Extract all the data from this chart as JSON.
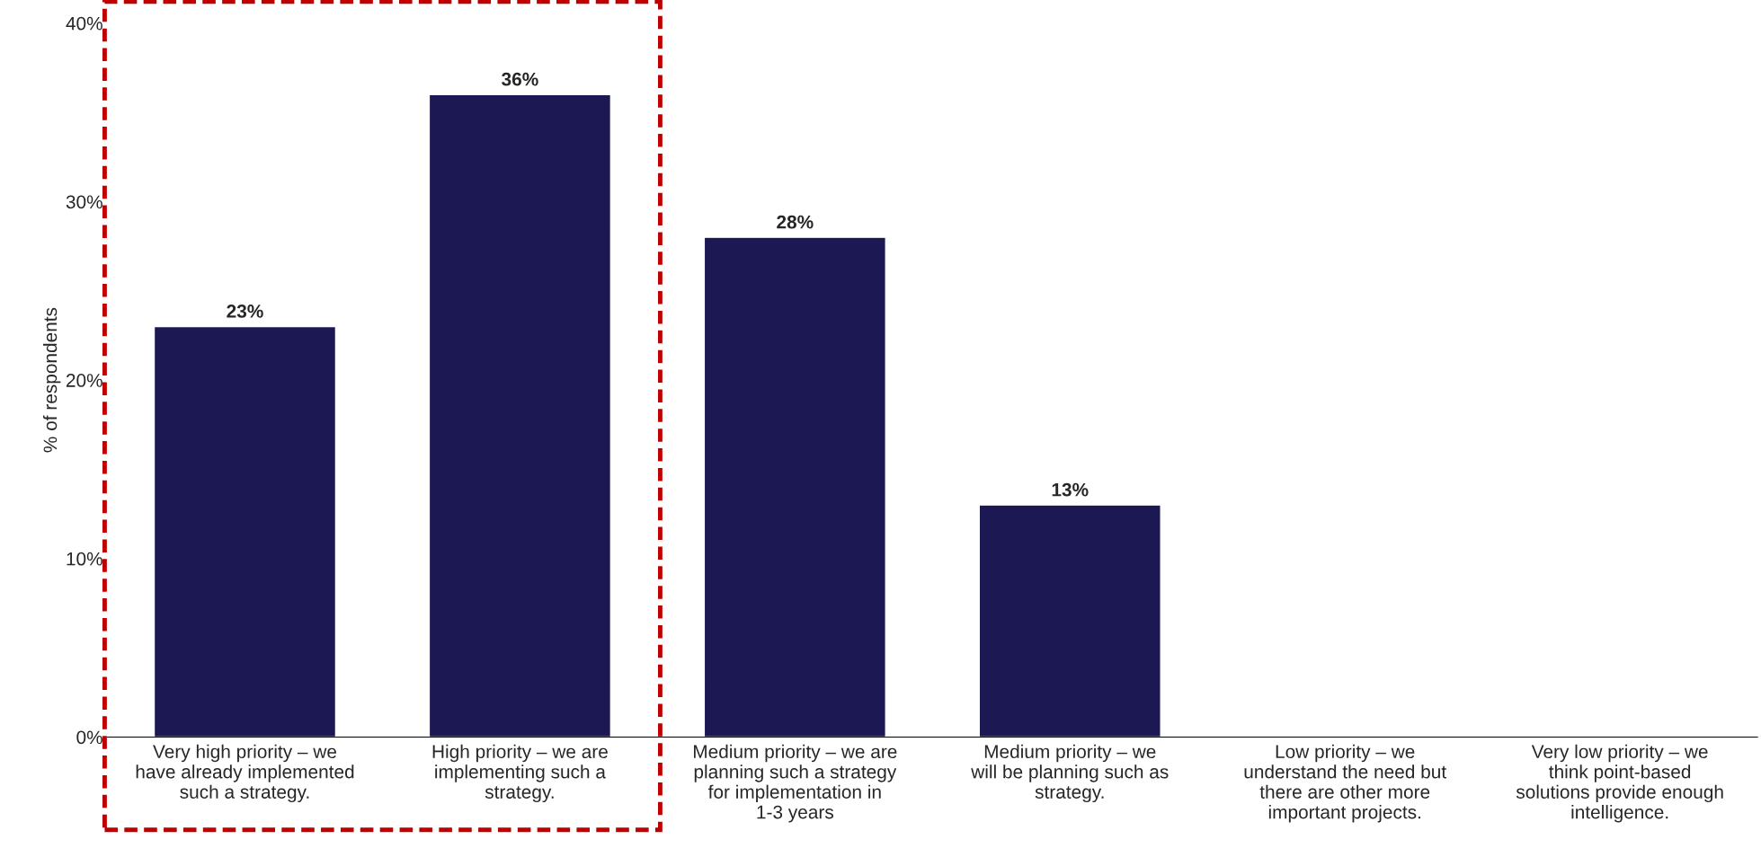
{
  "chart_data": {
    "type": "bar",
    "ylabel": "% of respondents",
    "categories": [
      "Very high priority – we have already implemented such a strategy.",
      "High priority – we are implementing such a strategy.",
      "Medium priority – we are planning such a strategy for implementation in 1-3 years",
      "Medium priority – we will be planning such as strategy.",
      "Low priority – we understand the need but there are other more important projects.",
      "Very low priority – we think point-based solutions provide enough intelligence."
    ],
    "values": [
      23,
      36,
      28,
      13,
      null,
      null
    ],
    "value_labels": [
      "23%",
      "36%",
      "28%",
      "13%",
      null,
      null
    ],
    "color": "#1b1853",
    "ylim": [
      0,
      40
    ],
    "yticks": [
      {
        "value": 0,
        "label": "0%"
      },
      {
        "value": 10,
        "label": "10%"
      },
      {
        "value": 20,
        "label": "20%"
      },
      {
        "value": 30,
        "label": "30%"
      },
      {
        "value": 40,
        "label": "40%"
      }
    ],
    "grid": false
  }
}
